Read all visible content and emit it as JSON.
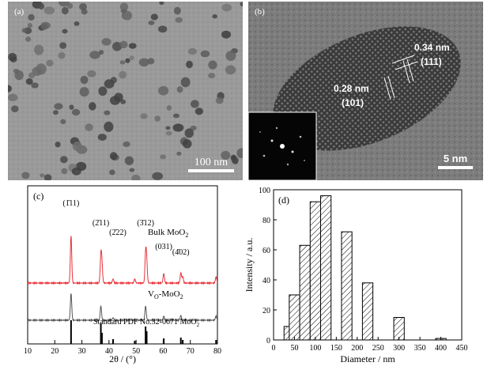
{
  "figure": {
    "panel_a": {
      "label": "(a)",
      "scale_bar": "100 nm"
    },
    "panel_b": {
      "label": "(b)",
      "spacing_1": "0.34 nm",
      "plane_1": "(111)",
      "spacing_2": "0.28 nm",
      "plane_2": "(101)",
      "scale_bar": "5 nm"
    }
  },
  "chart_data": [
    {
      "type": "line",
      "panel_label": "(c)",
      "xlabel": "2θ / (°)",
      "x_ticks": [
        10,
        20,
        30,
        40,
        50,
        60,
        70,
        80
      ],
      "xlim": [
        10,
        80
      ],
      "series": [
        {
          "name": "Bulk MoO₂",
          "color": "#e8323a",
          "peaks": [
            [
              26.0,
              60
            ],
            [
              37.0,
              34
            ],
            [
              37.4,
              22
            ],
            [
              41.5,
              5
            ],
            [
              49.5,
              5
            ],
            [
              53.5,
              36
            ],
            [
              53.9,
              26
            ],
            [
              60.2,
              12
            ],
            [
              66.5,
              13
            ],
            [
              67.2,
              8
            ],
            [
              79.5,
              8
            ]
          ]
        },
        {
          "name": "VO-MoO₂",
          "color": "#555555",
          "peaks": [
            [
              26.0,
              34
            ],
            [
              37.0,
              18
            ],
            [
              41.5,
              3
            ],
            [
              53.5,
              18
            ],
            [
              60.2,
              5
            ],
            [
              66.5,
              6
            ],
            [
              79.5,
              5
            ]
          ]
        },
        {
          "name": "Standard PDF No.32-0671 MoO₂",
          "color": "#000000",
          "sticks": [
            [
              26.0,
              30
            ],
            [
              37.0,
              26
            ],
            [
              37.4,
              14
            ],
            [
              41.5,
              6
            ],
            [
              49.5,
              4
            ],
            [
              53.5,
              22
            ],
            [
              53.9,
              16
            ],
            [
              60.2,
              7
            ],
            [
              66.5,
              8
            ],
            [
              67.2,
              5
            ],
            [
              79.5,
              5
            ]
          ]
        }
      ],
      "peak_labels": [
        {
          "text": "(1̄11)",
          "x": 26.0
        },
        {
          "text": "(2̄11)",
          "x": 37.0
        },
        {
          "text": "(2̄22)",
          "x": 41.5
        },
        {
          "text": "(3̄12)",
          "x": 53.5
        },
        {
          "text": "(031)",
          "x": 60.2
        },
        {
          "text": "(4̄02)",
          "x": 66.5
        }
      ],
      "legend": {
        "bulk_prefix": "Bulk MoO",
        "sub2": "2",
        "vo_prefix": "V",
        "vo_sub": "O",
        "vo_suffix": "-MoO",
        "pdf_label": "Standard PDF No.32-0671 MoO",
        "pdf_sub": "2"
      }
    },
    {
      "type": "bar",
      "panel_label": "(d)",
      "xlabel": "Diameter / nm",
      "ylabel": "Intensity / a.u.",
      "x_ticks": [
        0,
        50,
        100,
        150,
        200,
        250,
        300,
        350,
        400,
        450
      ],
      "y_ticks": [
        0,
        20,
        40,
        60,
        80,
        100
      ],
      "xlim": [
        0,
        450
      ],
      "ylim": [
        0,
        100
      ],
      "bar_width": 25,
      "bars": [
        {
          "center": 37.5,
          "value": 9
        },
        {
          "center": 50,
          "value": 30
        },
        {
          "center": 75,
          "value": 63
        },
        {
          "center": 100,
          "value": 92
        },
        {
          "center": 125,
          "value": 96
        },
        {
          "center": 175,
          "value": 72
        },
        {
          "center": 225,
          "value": 38
        },
        {
          "center": 300,
          "value": 15
        },
        {
          "center": 400,
          "value": 1
        }
      ]
    }
  ]
}
